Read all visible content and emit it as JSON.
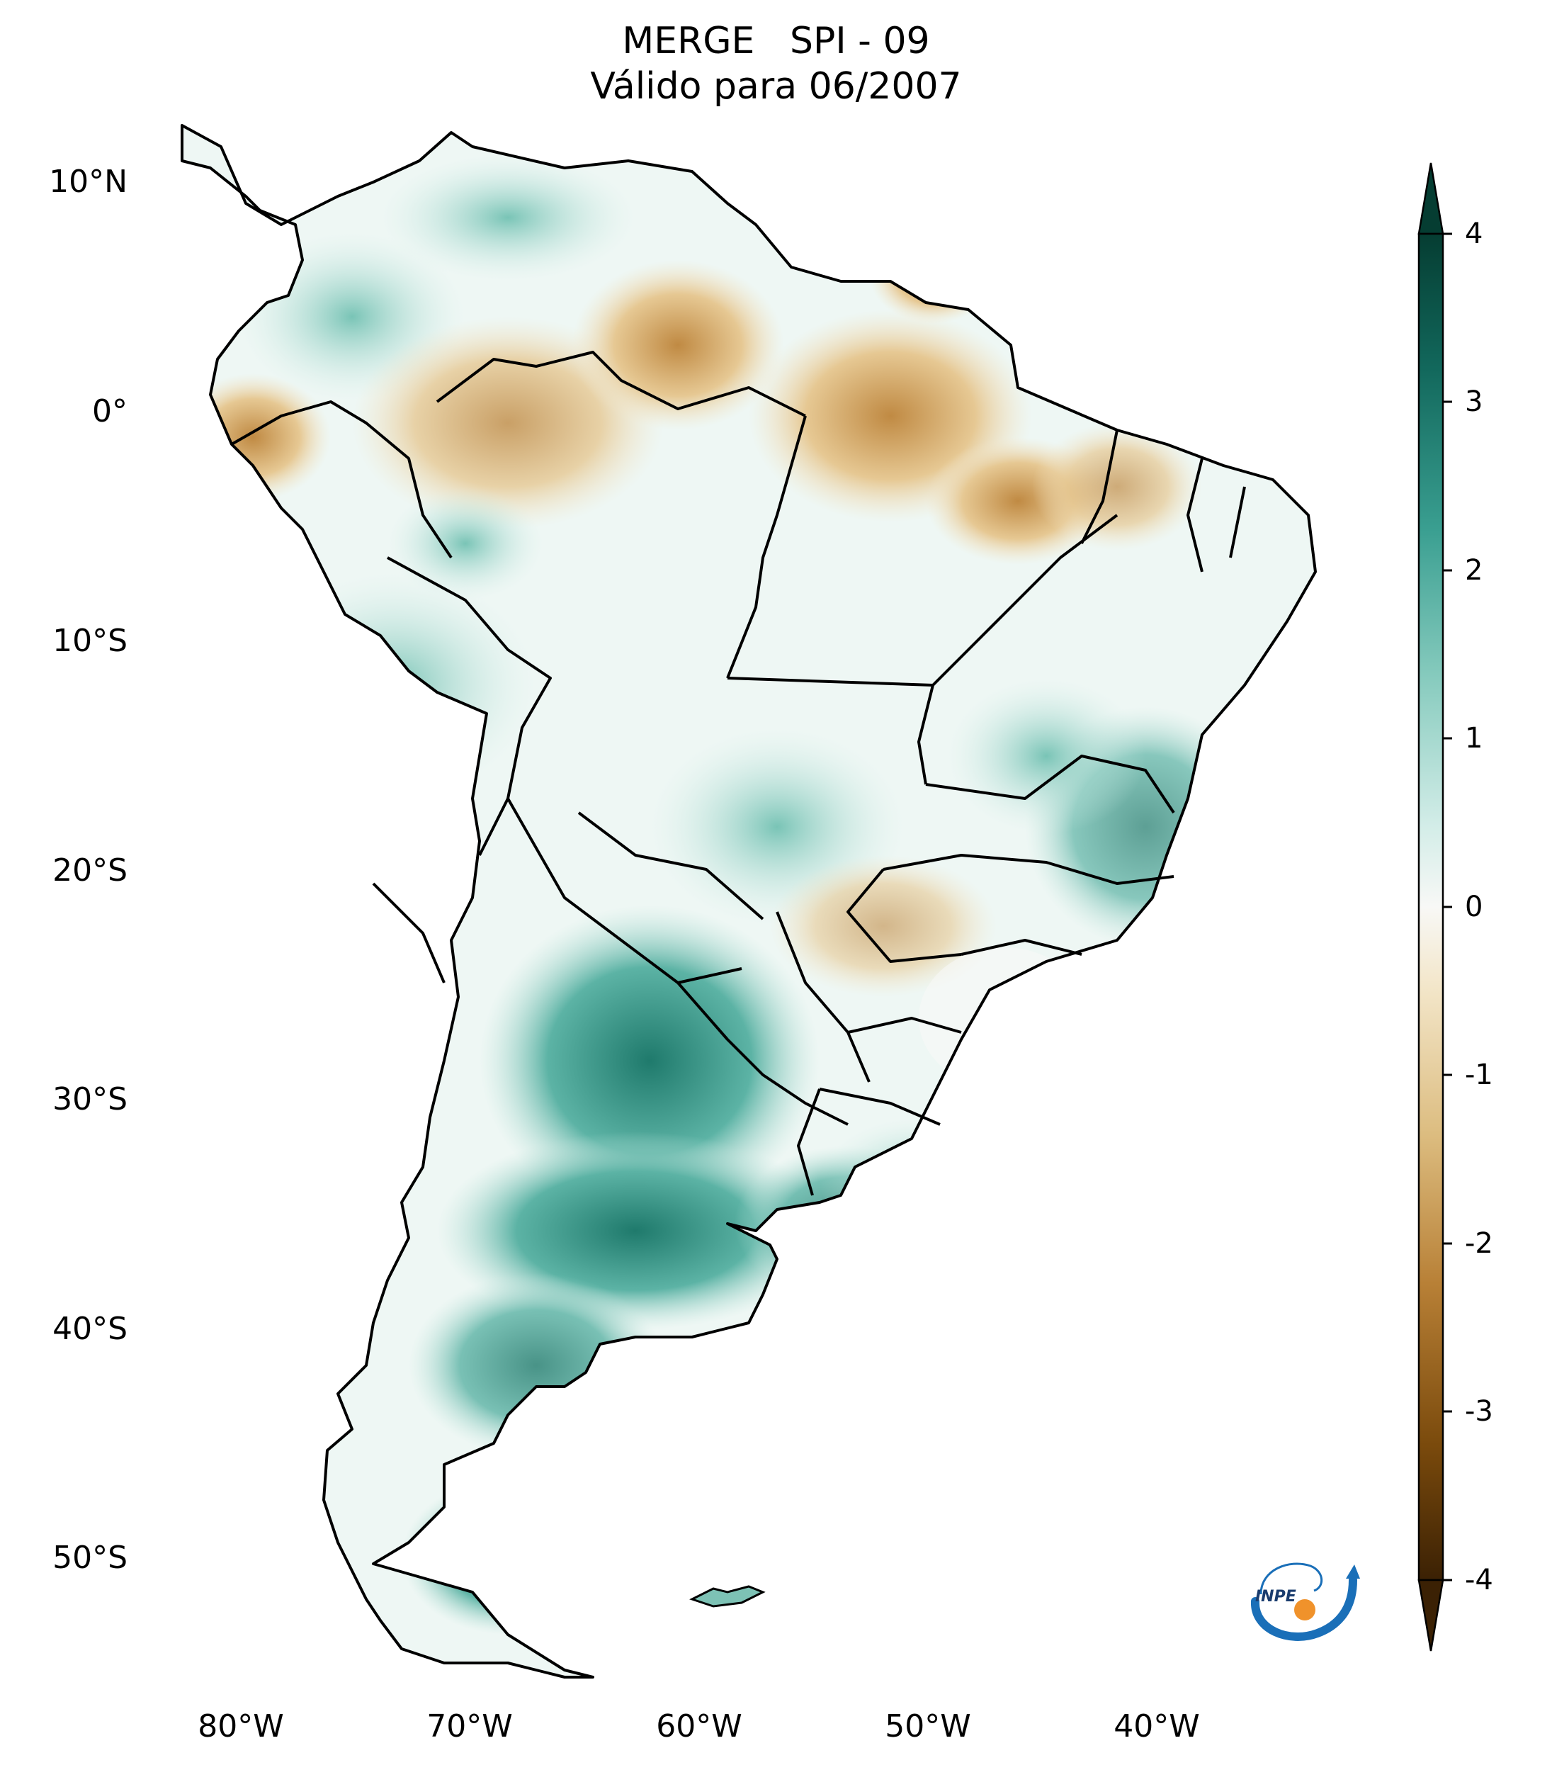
{
  "title": {
    "line1": "MERGE   SPI - 09",
    "line2": "Válido para 06/2007"
  },
  "map": {
    "region": "South America",
    "lon_range": [
      -85,
      -30
    ],
    "lat_range": [
      -57,
      13
    ],
    "lat_ticks": [
      "10°N",
      "0°",
      "10°S",
      "20°S",
      "30°S",
      "40°S",
      "50°S"
    ],
    "lon_ticks": [
      "80°W",
      "70°W",
      "60°W",
      "50°W",
      "40°W"
    ],
    "colors": {
      "strong_wet": "#0f5a4e",
      "wet": "#3a9d8f",
      "mild_wet": "#a9ddd3",
      "neutral": "#f7f7f5",
      "mild_dry": "#efdcb4",
      "dry": "#c8974e",
      "strong_dry": "#5c3608",
      "border": "#000000"
    }
  },
  "colorbar": {
    "ticks": [
      "4",
      "3",
      "2",
      "1",
      "0",
      "-1",
      "-2",
      "-3",
      "-4"
    ],
    "range": [
      -4,
      4
    ],
    "extend": "both",
    "palette": [
      "#3b2104",
      "#7a4a0c",
      "#b88036",
      "#dcbc7f",
      "#f3e6c9",
      "#f8f8f6",
      "#d3ede8",
      "#87cbbe",
      "#3a9f91",
      "#12685c",
      "#053d32"
    ]
  },
  "logo": {
    "text": "INPE",
    "colors": {
      "arc": "#1a6fb8",
      "dot": "#f0922b"
    }
  }
}
